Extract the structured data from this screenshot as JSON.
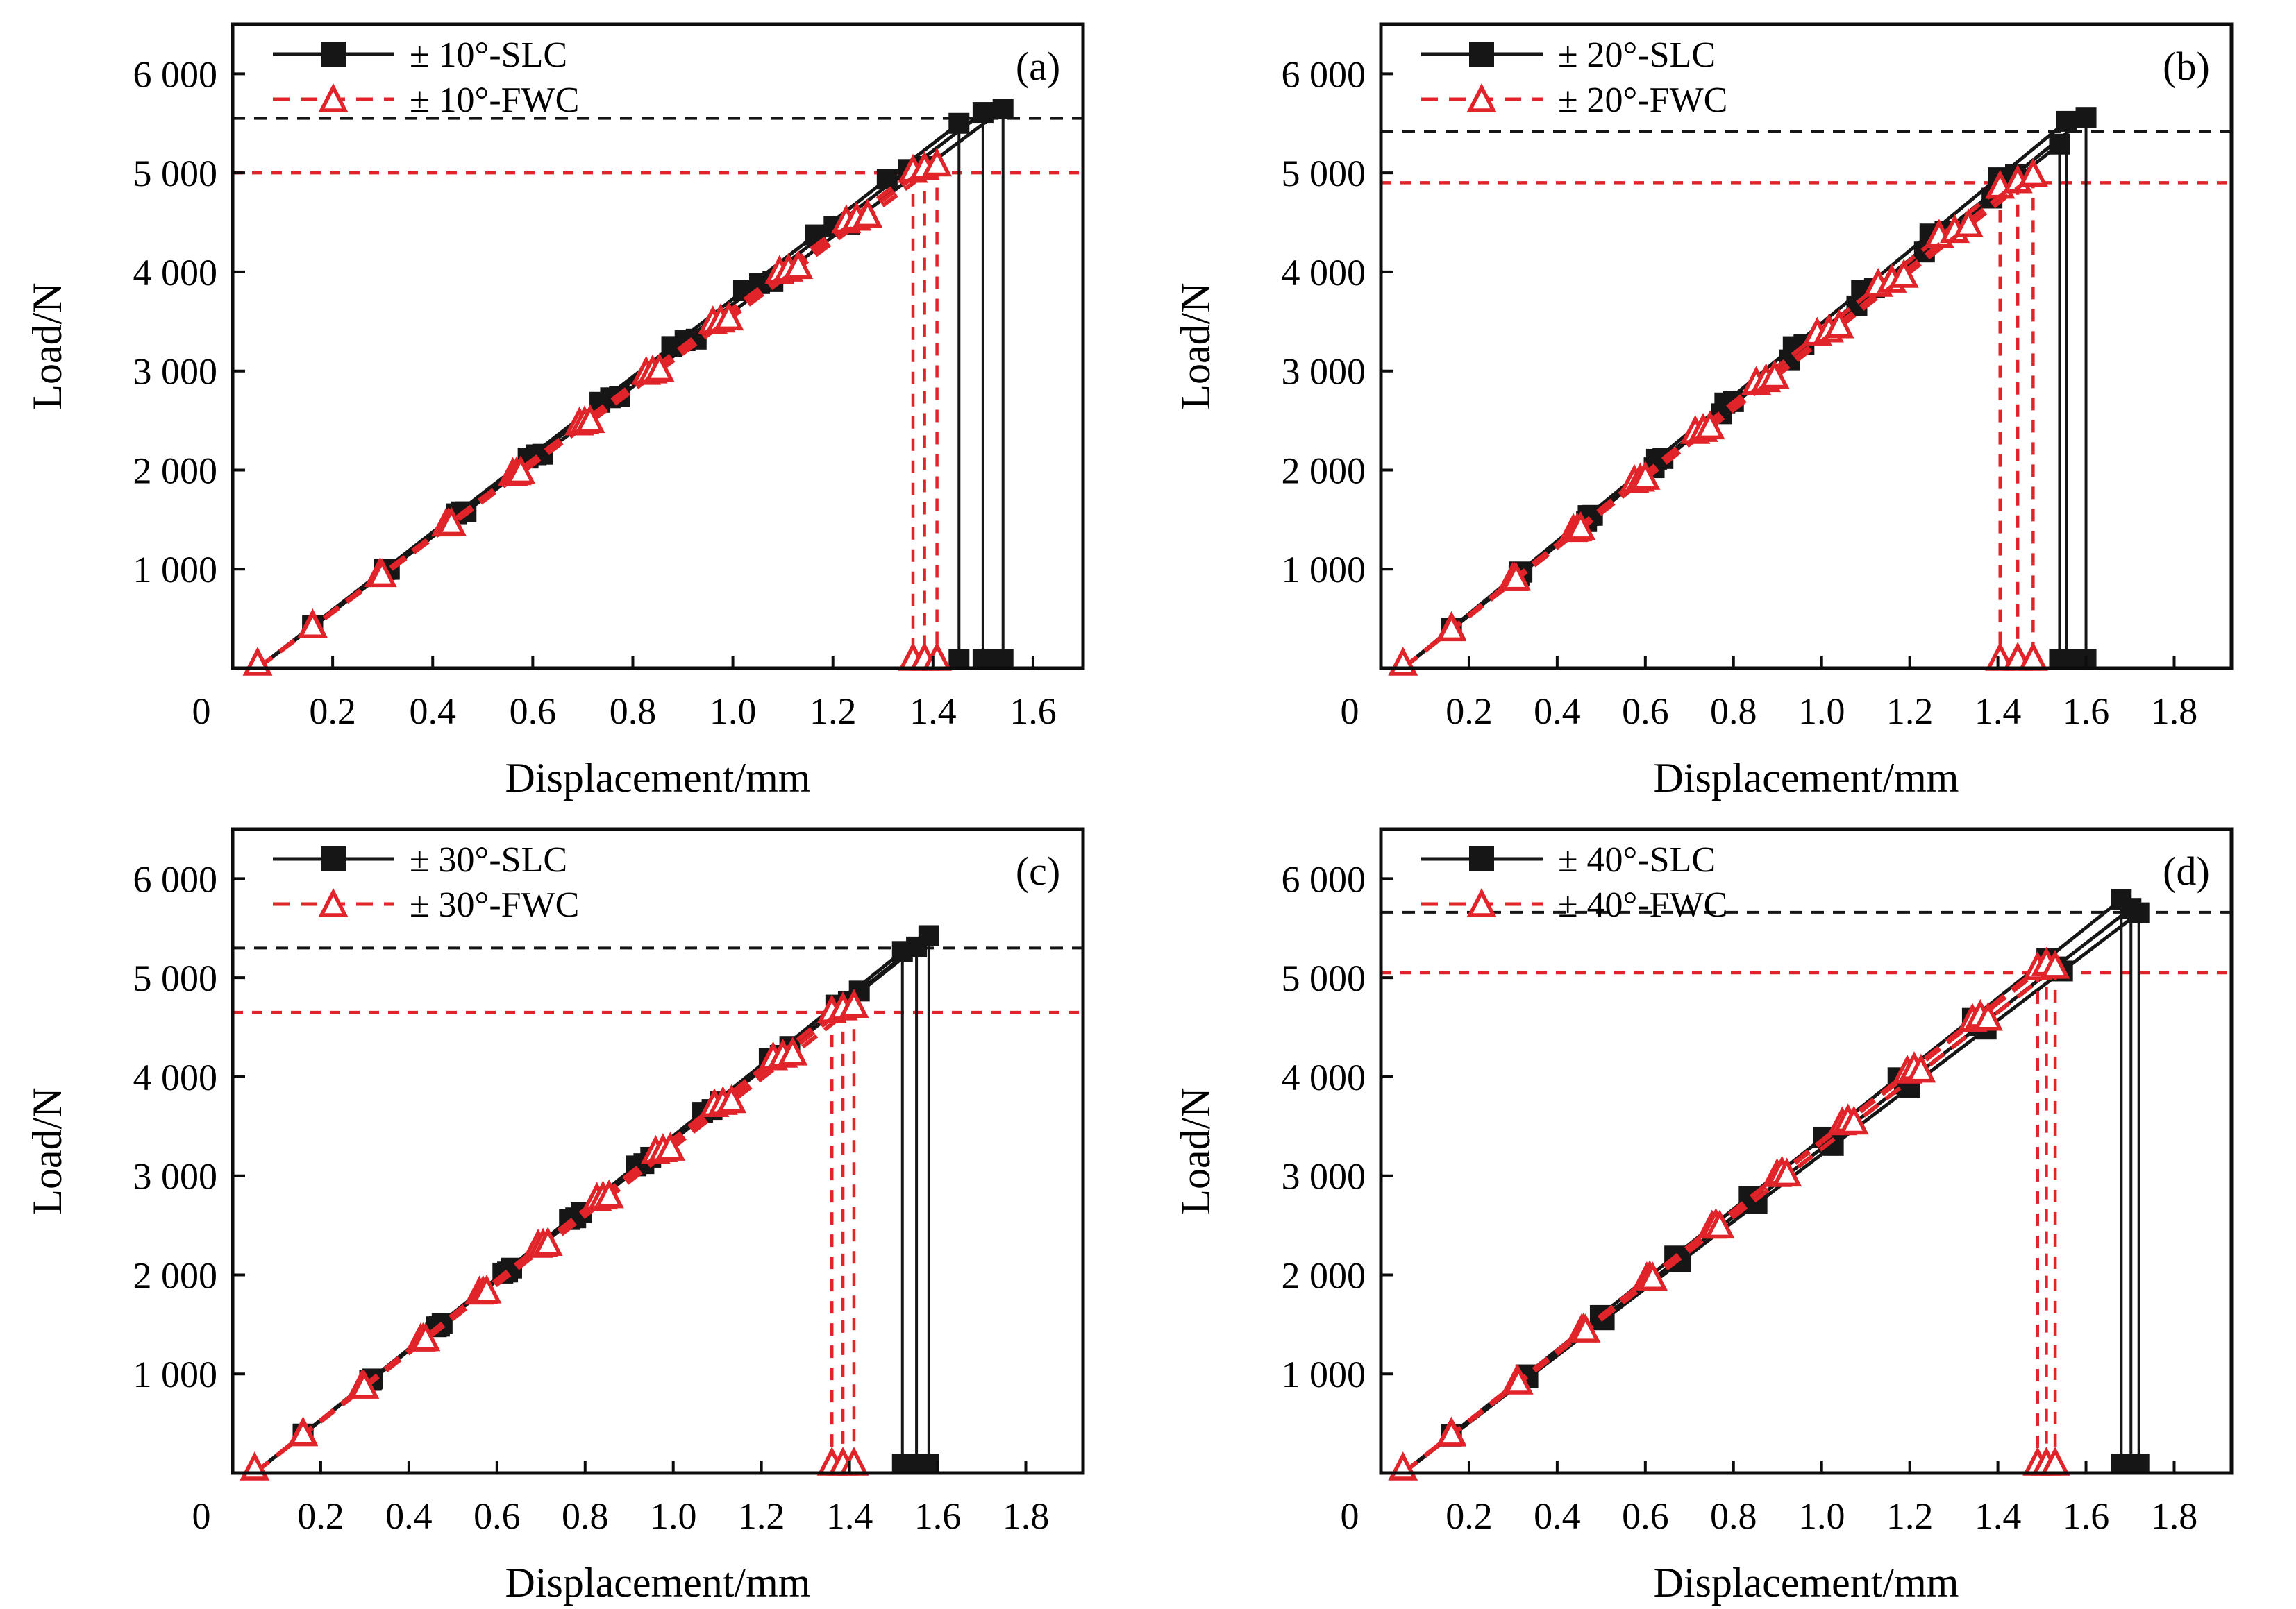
{
  "figure": {
    "background": "#ffffff",
    "description_visible_text_only": true,
    "panel_count": 4
  },
  "styles": {
    "slc_color": "#161616",
    "fwc_color": "#e1232a",
    "text_color": "#000000"
  },
  "chart_data": [
    {
      "type": "line",
      "panel_id": "a",
      "panel_label": "(a)",
      "xlabel": "Displacement/mm",
      "ylabel": "Load/N",
      "xlim": [
        0,
        1.7
      ],
      "ylim": [
        0,
        6500
      ],
      "xtick_values": [
        0,
        0.2,
        0.4,
        0.6,
        0.8,
        1.0,
        1.2,
        1.4,
        1.6
      ],
      "xtick_labels": [
        "0",
        "0.2",
        "0.4",
        "0.6",
        "0.8",
        "1.0",
        "1.2",
        "1.4",
        "1.6"
      ],
      "ytick_values": [
        1000,
        2000,
        3000,
        4000,
        5000,
        6000
      ],
      "ytick_labels": [
        "1 000",
        "2 000",
        "3 000",
        "4 000",
        "5 000",
        "6 000"
      ],
      "legend_position": "top-left-inside",
      "marker_first_x": 0.16,
      "markers_per_curve": 10,
      "legend": [
        {
          "label": "± 10°-SLC",
          "series": "SLC"
        },
        {
          "label": "± 10°-FWC",
          "series": "FWC"
        }
      ],
      "series": [
        {
          "name": "± 10°-SLC",
          "id": "SLC",
          "color": "#161616",
          "line_style": "solid",
          "marker": "filled-square",
          "x_start": 0.05,
          "avg_failure_load_line": 5550,
          "curves": [
            {
              "x_fail": 1.452,
              "load_fail": 5500
            },
            {
              "x_fail": 1.5,
              "load_fail": 5610
            },
            {
              "x_fail": 1.54,
              "load_fail": 5645
            }
          ]
        },
        {
          "name": "± 10°-FWC",
          "id": "FWC",
          "color": "#e1232a",
          "line_style": "dashed",
          "marker": "open-triangle",
          "x_start": 0.05,
          "avg_failure_load_line": 5000,
          "curves": [
            {
              "x_fail": 1.36,
              "load_fail": 5010
            },
            {
              "x_fail": 1.383,
              "load_fail": 5040
            },
            {
              "x_fail": 1.408,
              "load_fail": 5075
            }
          ]
        }
      ]
    },
    {
      "type": "line",
      "panel_id": "b",
      "panel_label": "(b)",
      "xlabel": "Displacement/mm",
      "ylabel": "Load/N",
      "xlim": [
        0,
        1.93
      ],
      "ylim": [
        0,
        6500
      ],
      "xtick_values": [
        0,
        0.2,
        0.4,
        0.6,
        0.8,
        1.0,
        1.2,
        1.4,
        1.6,
        1.8
      ],
      "xtick_labels": [
        "0",
        "0.2",
        "0.4",
        "0.6",
        "0.8",
        "1.0",
        "1.2",
        "1.4",
        "1.6",
        "1.8"
      ],
      "ytick_values": [
        1000,
        2000,
        3000,
        4000,
        5000,
        6000
      ],
      "ytick_labels": [
        "1 000",
        "2 000",
        "3 000",
        "4 000",
        "5 000",
        "6 000"
      ],
      "legend_position": "top-left-inside",
      "marker_first_x": 0.16,
      "markers_per_curve": 10,
      "legend": [
        {
          "label": "± 20°-SLC",
          "series": "SLC"
        },
        {
          "label": "± 20°-FWC",
          "series": "FWC"
        }
      ],
      "series": [
        {
          "name": "± 20°-SLC",
          "id": "SLC",
          "color": "#161616",
          "line_style": "solid",
          "marker": "filled-square",
          "x_start": 0.05,
          "avg_failure_load_line": 5420,
          "curves": [
            {
              "x_fail": 1.54,
              "load_fail": 5290
            },
            {
              "x_fail": 1.556,
              "load_fail": 5520
            },
            {
              "x_fail": 1.6,
              "load_fail": 5560
            }
          ]
        },
        {
          "name": "± 20°-FWC",
          "id": "FWC",
          "color": "#e1232a",
          "line_style": "dashed",
          "marker": "open-triangle",
          "x_start": 0.05,
          "avg_failure_load_line": 4900,
          "curves": [
            {
              "x_fail": 1.405,
              "load_fail": 4850
            },
            {
              "x_fail": 1.445,
              "load_fail": 4905
            },
            {
              "x_fail": 1.48,
              "load_fail": 4970
            }
          ]
        }
      ]
    },
    {
      "type": "line",
      "panel_id": "c",
      "panel_label": "(c)",
      "xlabel": "Displacement/mm",
      "ylabel": "Load/N",
      "xlim": [
        0,
        1.93
      ],
      "ylim": [
        0,
        6500
      ],
      "xtick_values": [
        0,
        0.2,
        0.4,
        0.6,
        0.8,
        1.0,
        1.2,
        1.4,
        1.6,
        1.8
      ],
      "xtick_labels": [
        "0",
        "0.2",
        "0.4",
        "0.6",
        "0.8",
        "1.0",
        "1.2",
        "1.4",
        "1.6",
        "1.8"
      ],
      "ytick_values": [
        1000,
        2000,
        3000,
        4000,
        5000,
        6000
      ],
      "ytick_labels": [
        "1 000",
        "2 000",
        "3 000",
        "4 000",
        "5 000",
        "6 000"
      ],
      "legend_position": "top-left-inside",
      "marker_first_x": 0.16,
      "markers_per_curve": 10,
      "legend": [
        {
          "label": "± 30°-SLC",
          "series": "SLC"
        },
        {
          "label": "± 30°-FWC",
          "series": "FWC"
        }
      ],
      "series": [
        {
          "name": "± 30°-SLC",
          "id": "SLC",
          "color": "#161616",
          "line_style": "solid",
          "marker": "filled-square",
          "x_start": 0.05,
          "avg_failure_load_line": 5300,
          "curves": [
            {
              "x_fail": 1.52,
              "load_fail": 5265
            },
            {
              "x_fail": 1.552,
              "load_fail": 5310
            },
            {
              "x_fail": 1.58,
              "load_fail": 5425
            }
          ]
        },
        {
          "name": "± 30°-FWC",
          "id": "FWC",
          "color": "#e1232a",
          "line_style": "dashed",
          "marker": "open-triangle",
          "x_start": 0.05,
          "avg_failure_load_line": 4650,
          "curves": [
            {
              "x_fail": 1.36,
              "load_fail": 4650
            },
            {
              "x_fail": 1.385,
              "load_fail": 4680
            },
            {
              "x_fail": 1.41,
              "load_fail": 4705
            }
          ]
        }
      ]
    },
    {
      "type": "line",
      "panel_id": "d",
      "panel_label": "(d)",
      "xlabel": "Displacement/mm",
      "ylabel": "Load/N",
      "xlim": [
        0,
        1.93
      ],
      "ylim": [
        0,
        6500
      ],
      "xtick_values": [
        0,
        0.2,
        0.4,
        0.6,
        0.8,
        1.0,
        1.2,
        1.4,
        1.6,
        1.8
      ],
      "xtick_labels": [
        "0",
        "0.2",
        "0.4",
        "0.6",
        "0.8",
        "1.0",
        "1.2",
        "1.4",
        "1.6",
        "1.8"
      ],
      "ytick_values": [
        1000,
        2000,
        3000,
        4000,
        5000,
        6000
      ],
      "ytick_labels": [
        "1 000",
        "2 000",
        "3 000",
        "4 000",
        "5 000",
        "6 000"
      ],
      "legend_position": "top-left-inside",
      "marker_first_x": 0.16,
      "markers_per_curve": 10,
      "legend": [
        {
          "label": "± 40°-SLC",
          "series": "SLC"
        },
        {
          "label": "± 40°-FWC",
          "series": "FWC"
        }
      ],
      "series": [
        {
          "name": "± 40°-SLC",
          "id": "SLC",
          "color": "#161616",
          "line_style": "solid",
          "marker": "filled-square",
          "x_start": 0.05,
          "avg_failure_load_line": 5660,
          "curves": [
            {
              "x_fail": 1.68,
              "load_fail": 5790
            },
            {
              "x_fail": 1.702,
              "load_fail": 5700
            },
            {
              "x_fail": 1.72,
              "load_fail": 5655
            }
          ]
        },
        {
          "name": "± 40°-FWC",
          "id": "FWC",
          "color": "#e1232a",
          "line_style": "dashed",
          "marker": "open-triangle",
          "x_start": 0.05,
          "avg_failure_load_line": 5050,
          "curves": [
            {
              "x_fail": 1.49,
              "load_fail": 5085
            },
            {
              "x_fail": 1.51,
              "load_fail": 5130
            },
            {
              "x_fail": 1.53,
              "load_fail": 5100
            }
          ]
        }
      ]
    }
  ]
}
